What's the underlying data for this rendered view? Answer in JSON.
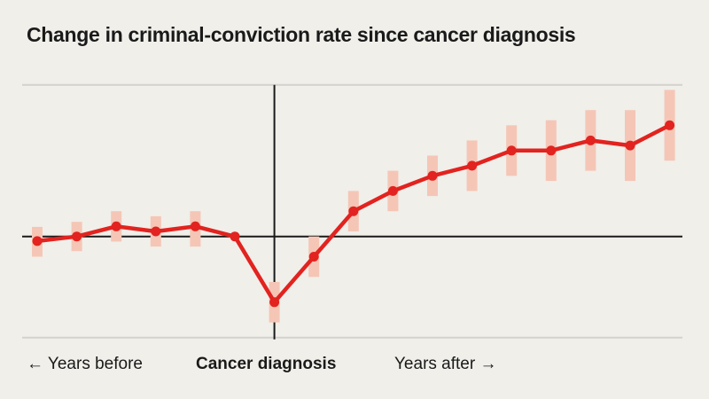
{
  "chart_data": {
    "type": "line",
    "title": "Change in criminal-conviction rate since cancer diagnosis",
    "x": [
      -6,
      -5,
      -4,
      -3,
      -2,
      -1,
      0,
      1,
      2,
      3,
      4,
      5,
      6,
      7,
      8,
      9,
      10
    ],
    "series": [
      {
        "values": [
          -0.09,
          0,
          0.2,
          0.1,
          0.2,
          0,
          -1.3,
          -0.4,
          0.5,
          0.9,
          1.2,
          1.4,
          1.7,
          1.7,
          1.9,
          1.8,
          2.2
        ],
        "ci_upper": [
          0.19,
          0.29,
          0.5,
          0.4,
          0.5,
          null,
          -0.9,
          0,
          0.9,
          1.3,
          1.6,
          1.9,
          2.2,
          2.3,
          2.5,
          2.5,
          2.9
        ],
        "ci_lower": [
          -0.4,
          -0.29,
          -0.1,
          -0.2,
          -0.2,
          null,
          -1.7,
          -0.8,
          0.1,
          0.5,
          0.8,
          0.9,
          1.2,
          1.1,
          1.3,
          1.1,
          1.5
        ]
      }
    ],
    "ylim": [
      -2,
      3
    ],
    "gridlines_y": [
      3,
      0,
      -2
    ],
    "vertical_marker_x": 0,
    "grid": true,
    "y_tick_labels": false,
    "colors": {
      "line": "#e2231f",
      "ci": "#f5c6b6",
      "axis": "#1a1a1a",
      "grid": "#d4d2cc",
      "background": "#f0efea"
    },
    "x_labels": {
      "before": "← Years before",
      "event": "Cancer diagnosis",
      "after": "Years after →"
    }
  }
}
